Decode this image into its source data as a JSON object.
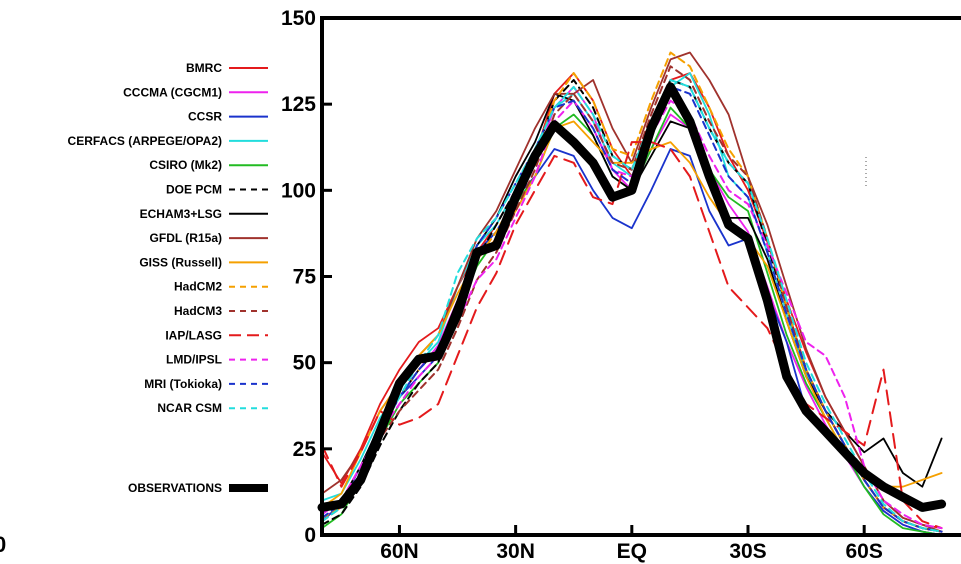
{
  "chart_data": {
    "type": "line",
    "title": "",
    "xlabel": "",
    "ylabel": "",
    "corner_label": "0",
    "x": [
      80,
      75,
      70,
      65,
      60,
      55,
      50,
      45,
      40,
      35,
      30,
      25,
      20,
      15,
      10,
      5,
      0,
      -5,
      -10,
      -15,
      -20,
      -25,
      -30,
      -35,
      -40,
      -45,
      -50,
      -55,
      -60,
      -65,
      -70,
      -75,
      -80
    ],
    "x_range": [
      80,
      -85
    ],
    "ylim": [
      0,
      150
    ],
    "y_ticks": [
      0,
      25,
      50,
      75,
      100,
      125,
      150
    ],
    "x_ticks": [
      {
        "value": 60,
        "label": "60N"
      },
      {
        "value": 30,
        "label": "30N"
      },
      {
        "value": 0,
        "label": "EQ"
      },
      {
        "value": -30,
        "label": "30S"
      },
      {
        "value": -60,
        "label": "60S"
      }
    ],
    "legend_position": "left",
    "grid": false,
    "series": [
      {
        "name": "BMRC",
        "color": "#e41a1c",
        "style": "solid",
        "values": [
          24,
          15,
          25,
          38,
          48,
          56,
          60,
          72,
          82,
          90,
          100,
          110,
          128,
          134,
          126,
          112,
          104,
          118,
          132,
          134,
          124,
          110,
          100,
          85,
          68,
          53,
          40,
          30,
          20,
          10,
          5,
          3,
          2
        ]
      },
      {
        "name": "CCCMA (CGCM1)",
        "color": "#ee22ee",
        "style": "solid",
        "values": [
          5,
          8,
          18,
          30,
          40,
          48,
          55,
          68,
          80,
          86,
          96,
          108,
          124,
          130,
          122,
          106,
          100,
          112,
          122,
          118,
          106,
          96,
          88,
          72,
          56,
          43,
          32,
          23,
          14,
          7,
          3,
          1,
          0
        ]
      },
      {
        "name": "CCSR",
        "color": "#1a33cc",
        "style": "solid",
        "values": [
          4,
          9,
          20,
          32,
          40,
          46,
          52,
          66,
          82,
          88,
          98,
          104,
          112,
          110,
          100,
          92,
          89,
          100,
          112,
          110,
          94,
          84,
          86,
          70,
          56,
          36,
          30,
          24,
          14,
          7,
          3,
          1,
          0
        ]
      },
      {
        "name": "CERFACS (ARPEGE/OPA2)",
        "color": "#22dddd",
        "style": "solid",
        "values": [
          10,
          12,
          22,
          34,
          42,
          50,
          56,
          72,
          84,
          90,
          100,
          112,
          124,
          128,
          120,
          108,
          104,
          118,
          130,
          134,
          122,
          104,
          98,
          82,
          64,
          47,
          36,
          26,
          16,
          8,
          4,
          2,
          1
        ]
      },
      {
        "name": "CSIRO (Mk2)",
        "color": "#22bb22",
        "style": "solid",
        "values": [
          2,
          6,
          16,
          28,
          38,
          44,
          50,
          64,
          78,
          86,
          96,
          104,
          118,
          122,
          116,
          104,
          100,
          112,
          124,
          118,
          106,
          98,
          94,
          76,
          58,
          44,
          34,
          24,
          14,
          6,
          2,
          1,
          0
        ]
      },
      {
        "name": "DOE PCM",
        "color": "#000000",
        "style": "dashed",
        "values": [
          3,
          6,
          14,
          26,
          36,
          44,
          50,
          64,
          80,
          90,
          100,
          110,
          126,
          132,
          124,
          110,
          106,
          120,
          132,
          130,
          118,
          108,
          102,
          84,
          66,
          48,
          36,
          26,
          16,
          8,
          4,
          2,
          1
        ]
      },
      {
        "name": "ECHAM3+LSG",
        "color": "#000000",
        "style": "solid",
        "values": [
          6,
          10,
          20,
          32,
          40,
          48,
          54,
          68,
          84,
          92,
          104,
          114,
          128,
          126,
          116,
          104,
          100,
          110,
          120,
          118,
          106,
          92,
          92,
          80,
          62,
          46,
          36,
          30,
          24,
          28,
          18,
          14,
          28
        ]
      },
      {
        "name": "GFDL (R15a)",
        "color": "#a0322d",
        "style": "solid",
        "values": [
          12,
          16,
          24,
          36,
          44,
          52,
          58,
          72,
          86,
          94,
          106,
          118,
          128,
          128,
          132,
          118,
          108,
          124,
          138,
          140,
          132,
          122,
          104,
          90,
          72,
          54,
          40,
          30,
          20,
          10,
          5,
          3,
          1
        ]
      },
      {
        "name": "GISS (Russell)",
        "color": "#f5a000",
        "style": "solid",
        "values": [
          8,
          12,
          24,
          36,
          44,
          52,
          58,
          70,
          80,
          86,
          94,
          104,
          118,
          120,
          114,
          108,
          108,
          112,
          114,
          108,
          98,
          90,
          86,
          78,
          62,
          46,
          34,
          24,
          18,
          14,
          14,
          16,
          18
        ]
      },
      {
        "name": "HadCM2",
        "color": "#f5a000",
        "style": "dashed",
        "values": [
          5,
          8,
          18,
          30,
          40,
          48,
          54,
          66,
          80,
          88,
          98,
          110,
          126,
          134,
          126,
          112,
          110,
          126,
          140,
          136,
          124,
          112,
          104,
          86,
          66,
          48,
          36,
          26,
          16,
          8,
          4,
          2,
          1
        ]
      },
      {
        "name": "HadCM3",
        "color": "#a0322d",
        "style": "dashed",
        "values": [
          4,
          8,
          18,
          28,
          36,
          42,
          48,
          60,
          74,
          82,
          94,
          106,
          122,
          128,
          120,
          108,
          106,
          122,
          136,
          132,
          120,
          110,
          104,
          86,
          66,
          48,
          36,
          26,
          16,
          8,
          4,
          2,
          1
        ]
      },
      {
        "name": "IAP/LASG",
        "color": "#e41a1c",
        "style": "longdash",
        "values": [
          26,
          14,
          24,
          36,
          32,
          34,
          38,
          52,
          66,
          76,
          90,
          100,
          110,
          108,
          98,
          96,
          114,
          114,
          112,
          104,
          88,
          72,
          66,
          60,
          48,
          38,
          34,
          30,
          26,
          48,
          10,
          4,
          2
        ]
      },
      {
        "name": "LMD/IPSL",
        "color": "#ee22ee",
        "style": "dashed",
        "values": [
          6,
          10,
          20,
          30,
          38,
          46,
          52,
          62,
          74,
          80,
          92,
          104,
          120,
          126,
          118,
          106,
          104,
          116,
          126,
          122,
          110,
          100,
          96,
          84,
          70,
          56,
          52,
          40,
          20,
          10,
          6,
          3,
          2
        ]
      },
      {
        "name": "MRI (Tokioka)",
        "color": "#1a33cc",
        "style": "dashed",
        "values": [
          5,
          9,
          18,
          30,
          40,
          48,
          54,
          66,
          84,
          92,
          102,
          112,
          124,
          126,
          118,
          106,
          102,
          118,
          130,
          128,
          116,
          104,
          98,
          82,
          64,
          48,
          36,
          26,
          16,
          8,
          4,
          2,
          1
        ]
      },
      {
        "name": "NCAR CSM",
        "color": "#22dddd",
        "style": "dashed",
        "values": [
          4,
          8,
          18,
          30,
          40,
          50,
          58,
          76,
          86,
          92,
          102,
          112,
          124,
          130,
          122,
          110,
          106,
          120,
          132,
          130,
          118,
          108,
          102,
          86,
          68,
          50,
          38,
          28,
          18,
          9,
          4,
          2,
          1
        ]
      },
      {
        "name": "OBSERVATIONS",
        "color": "#000000",
        "style": "thick",
        "values": [
          8,
          9,
          16,
          30,
          44,
          51,
          52,
          64,
          82,
          84,
          98,
          110,
          119,
          114,
          108,
          98,
          100,
          118,
          130,
          120,
          104,
          90,
          86,
          68,
          46,
          36,
          30,
          24,
          18,
          14,
          11,
          8,
          9
        ]
      }
    ]
  }
}
